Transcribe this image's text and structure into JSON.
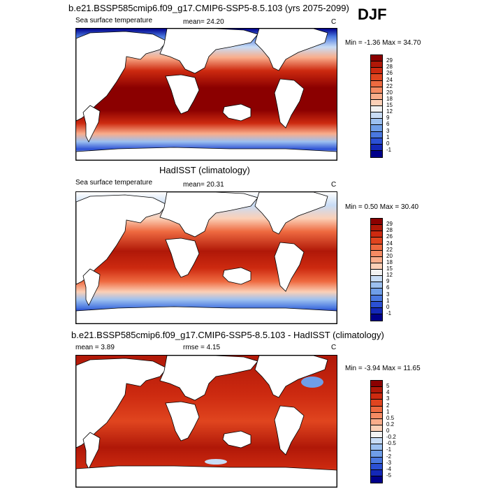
{
  "season": "DJF",
  "panels": [
    {
      "title": "b.e21.BSSP585cmip6.f09_g17.CMIP6-SSP5-8.5.103 (yrs 2075-2099)",
      "left_label": "Sea surface temperature",
      "center_label": "mean=  24.20",
      "units": "C",
      "minmax": "Min =  -1.36 Max =  34.70",
      "colorbar": {
        "labels": [
          "29",
          "28",
          "26",
          "24",
          "22",
          "20",
          "18",
          "15",
          "12",
          "9",
          "6",
          "3",
          "1",
          "0",
          "-1"
        ],
        "colors": [
          "#8b0000",
          "#b01808",
          "#cd2a10",
          "#e0451f",
          "#ee6a40",
          "#f58b63",
          "#f9ad8b",
          "#fbd0b7",
          "#f2f2f2",
          "#c8dcf5",
          "#9cc0f0",
          "#6f9ee8",
          "#4a78e0",
          "#2b50d4",
          "#1428b8",
          "#00008b"
        ]
      }
    },
    {
      "title": "HadISST (climatology)",
      "left_label": "Sea surface temperature",
      "center_label": "mean=  20.31",
      "units": "C",
      "minmax": "Min =   0.50 Max =  30.40",
      "colorbar": {
        "labels": [
          "29",
          "28",
          "26",
          "24",
          "22",
          "20",
          "18",
          "15",
          "12",
          "9",
          "6",
          "3",
          "1",
          "0",
          "-1"
        ],
        "colors": [
          "#8b0000",
          "#b01808",
          "#cd2a10",
          "#e0451f",
          "#ee6a40",
          "#f58b63",
          "#f9ad8b",
          "#fbd0b7",
          "#f2f2f2",
          "#c8dcf5",
          "#9cc0f0",
          "#6f9ee8",
          "#4a78e0",
          "#2b50d4",
          "#1428b8",
          "#00008b"
        ]
      }
    },
    {
      "title": "b.e21.BSSP585cmip6.f09_g17.CMIP6-SSP5-8.5.103 - HadISST (climatology)",
      "left_label": "mean =   3.89",
      "center_label": "rmse =   4.15",
      "units": "C",
      "minmax": "Min =  -3.94 Max =  11.65",
      "colorbar": {
        "labels": [
          "5",
          "4",
          "3",
          "2",
          "1",
          "0.5",
          "0.2",
          "0",
          "-0.2",
          "-0.5",
          "-1",
          "-2",
          "-3",
          "-4",
          "-5"
        ],
        "colors": [
          "#8b0000",
          "#b01808",
          "#cd2a10",
          "#e0451f",
          "#ee6a40",
          "#f58b63",
          "#f9ad8b",
          "#fbd0b7",
          "#f2f2f2",
          "#c8dcf5",
          "#9cc0f0",
          "#6f9ee8",
          "#4a78e0",
          "#2b50d4",
          "#1428b8",
          "#00008b"
        ]
      }
    }
  ]
}
